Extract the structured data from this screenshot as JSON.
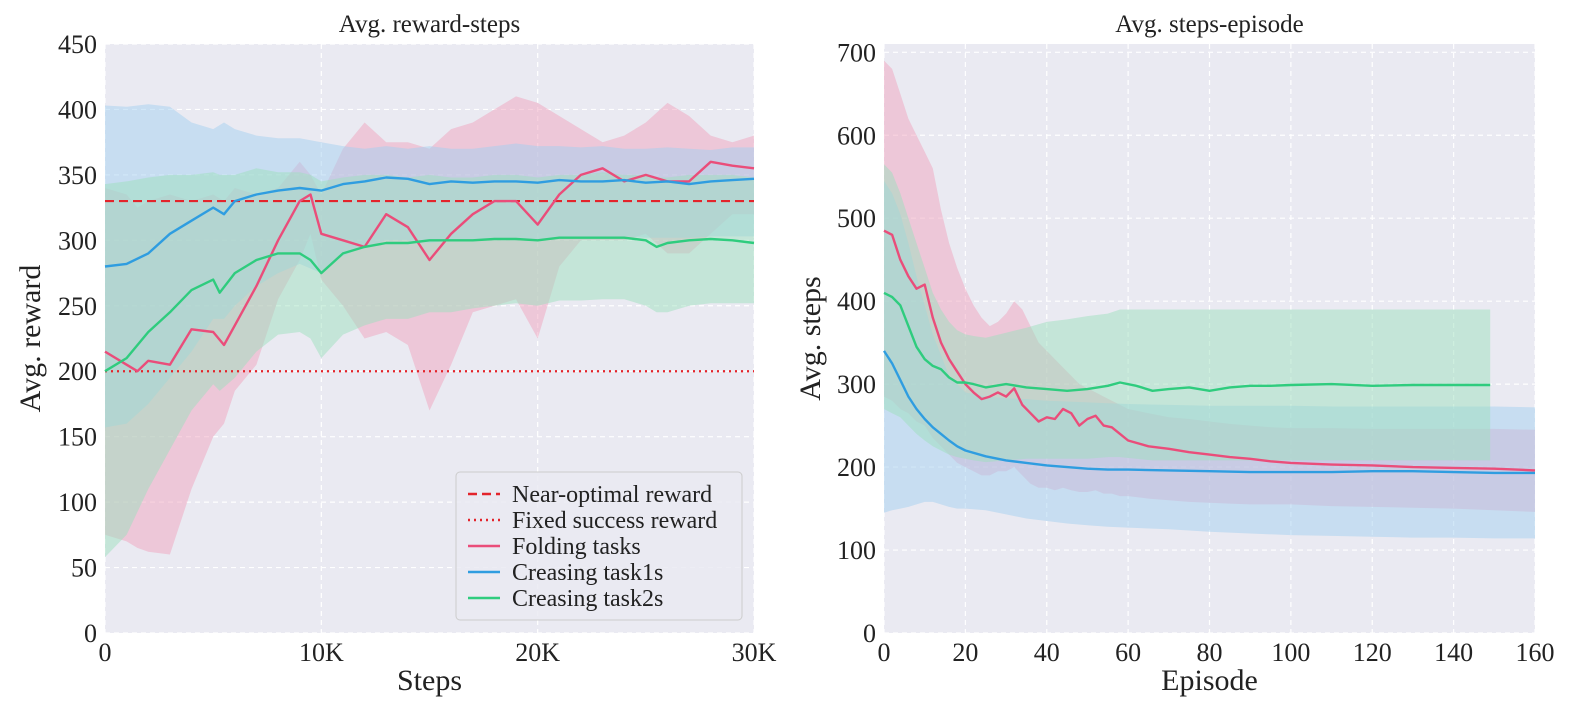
{
  "chart_data": [
    {
      "type": "line",
      "title": "Avg. reward-steps",
      "xlabel": "Steps",
      "ylabel": "Avg. reward",
      "xlim": [
        0,
        30000
      ],
      "ylim": [
        0,
        450
      ],
      "xticks": [
        0,
        10000,
        20000,
        30000
      ],
      "xtick_labels": [
        "0",
        "10K",
        "20K",
        "30K"
      ],
      "yticks": [
        0,
        50,
        100,
        150,
        200,
        250,
        300,
        350,
        400,
        450
      ],
      "ytick_labels": [
        "0",
        "50",
        "100",
        "150",
        "200",
        "250",
        "300",
        "350",
        "400",
        "450"
      ],
      "grid": true,
      "legend_position": "lower-right",
      "legend": [
        "Near-optimal reward",
        "Fixed success reward",
        "Folding tasks",
        "Creasing task1s",
        "Creasing task2s"
      ],
      "hlines": [
        {
          "name": "Near-optimal reward",
          "value": 330,
          "style": "dashed",
          "color": "#e3242b"
        },
        {
          "name": "Fixed success reward",
          "value": 200,
          "style": "dotted",
          "color": "#e3242b"
        }
      ],
      "series": [
        {
          "name": "Folding tasks",
          "color": "#ea4d7a",
          "band_color": "#f0a3bd",
          "x": [
            0,
            1000,
            1500,
            2000,
            3000,
            4000,
            5000,
            5500,
            6000,
            7000,
            8000,
            9000,
            9500,
            10000,
            11000,
            12000,
            13000,
            14000,
            15000,
            16000,
            17000,
            18000,
            19000,
            20000,
            21000,
            22000,
            23000,
            24000,
            25000,
            26000,
            27000,
            28000,
            29000,
            30000
          ],
          "values": [
            215,
            205,
            200,
            208,
            205,
            232,
            230,
            220,
            235,
            265,
            300,
            330,
            335,
            305,
            300,
            295,
            320,
            310,
            285,
            305,
            320,
            330,
            330,
            312,
            335,
            350,
            355,
            345,
            350,
            345,
            345,
            360,
            357,
            355
          ],
          "upper": [
            340,
            335,
            325,
            330,
            335,
            330,
            335,
            330,
            340,
            335,
            340,
            360,
            350,
            335,
            370,
            390,
            375,
            375,
            370,
            385,
            390,
            400,
            410,
            405,
            395,
            385,
            375,
            380,
            390,
            405,
            395,
            380,
            375,
            380
          ],
          "lower": [
            75,
            70,
            65,
            62,
            60,
            110,
            150,
            160,
            185,
            205,
            255,
            285,
            305,
            270,
            250,
            225,
            230,
            220,
            170,
            205,
            245,
            250,
            255,
            225,
            280,
            300,
            300,
            300,
            305,
            290,
            290,
            305,
            320,
            320
          ]
        },
        {
          "name": "Creasing task1s",
          "color": "#2f9de0",
          "band_color": "#a4d0ef",
          "x": [
            0,
            1000,
            2000,
            3000,
            4000,
            5000,
            5500,
            6000,
            7000,
            8000,
            9000,
            10000,
            11000,
            12000,
            13000,
            14000,
            15000,
            16000,
            17000,
            18000,
            19000,
            20000,
            21000,
            22000,
            23000,
            24000,
            25000,
            26000,
            27000,
            28000,
            29000,
            30000
          ],
          "values": [
            280,
            282,
            290,
            305,
            315,
            325,
            320,
            330,
            335,
            338,
            340,
            338,
            343,
            345,
            348,
            347,
            343,
            345,
            344,
            345,
            345,
            344,
            346,
            345,
            345,
            346,
            344,
            345,
            343,
            345,
            346,
            347
          ],
          "upper": [
            403,
            402,
            404,
            402,
            390,
            385,
            390,
            385,
            380,
            378,
            378,
            375,
            372,
            370,
            372,
            370,
            372,
            370,
            370,
            372,
            374,
            372,
            372,
            371,
            372,
            370,
            370,
            371,
            370,
            369,
            371,
            371
          ],
          "lower": [
            157,
            160,
            175,
            195,
            215,
            240,
            240,
            250,
            265,
            275,
            282,
            275,
            288,
            295,
            300,
            300,
            298,
            300,
            300,
            300,
            300,
            300,
            302,
            302,
            302,
            303,
            302,
            302,
            302,
            303,
            303,
            303
          ]
        },
        {
          "name": "Creasing task2s",
          "color": "#2fcc7e",
          "band_color": "#9ee0bd",
          "x": [
            0,
            1000,
            2000,
            3000,
            4000,
            5000,
            5300,
            6000,
            7000,
            8000,
            9000,
            9500,
            10000,
            11000,
            12000,
            13000,
            14000,
            15000,
            16000,
            17000,
            18000,
            19000,
            20000,
            21000,
            22000,
            23000,
            24000,
            25000,
            25500,
            26000,
            27000,
            28000,
            29000,
            30000
          ],
          "values": [
            200,
            210,
            230,
            245,
            262,
            270,
            260,
            275,
            285,
            290,
            290,
            285,
            275,
            290,
            295,
            298,
            298,
            300,
            300,
            300,
            301,
            301,
            300,
            302,
            302,
            302,
            302,
            300,
            295,
            298,
            300,
            301,
            300,
            298
          ],
          "upper": [
            343,
            345,
            348,
            350,
            350,
            352,
            350,
            350,
            355,
            352,
            352,
            350,
            345,
            348,
            350,
            350,
            348,
            350,
            348,
            348,
            350,
            350,
            348,
            350,
            350,
            352,
            350,
            350,
            348,
            348,
            350,
            350,
            350,
            348
          ],
          "lower": [
            58,
            75,
            110,
            140,
            170,
            190,
            185,
            195,
            215,
            228,
            230,
            225,
            210,
            228,
            235,
            240,
            240,
            245,
            245,
            248,
            250,
            252,
            250,
            254,
            254,
            255,
            255,
            250,
            245,
            245,
            250,
            252,
            252,
            252
          ]
        }
      ]
    },
    {
      "type": "line",
      "title": "Avg. steps-episode",
      "xlabel": "Episode",
      "ylabel": "Avg. steps",
      "xlim": [
        0,
        160
      ],
      "ylim": [
        0,
        710
      ],
      "xticks": [
        0,
        20,
        40,
        60,
        80,
        100,
        120,
        140,
        160
      ],
      "xtick_labels": [
        "0",
        "20",
        "40",
        "60",
        "80",
        "100",
        "120",
        "140",
        "160"
      ],
      "yticks": [
        0,
        100,
        200,
        300,
        400,
        500,
        600,
        700
      ],
      "ytick_labels": [
        "0",
        "100",
        "200",
        "300",
        "400",
        "500",
        "600",
        "700"
      ],
      "grid": true,
      "series": [
        {
          "name": "Folding tasks",
          "color": "#ea4d7a",
          "band_color": "#f0a3bd",
          "x": [
            0,
            2,
            4,
            6,
            8,
            10,
            12,
            14,
            16,
            18,
            20,
            22,
            24,
            26,
            28,
            30,
            32,
            34,
            36,
            38,
            40,
            42,
            44,
            46,
            48,
            50,
            52,
            54,
            56,
            58,
            60,
            65,
            70,
            75,
            80,
            85,
            90,
            95,
            100,
            110,
            120,
            130,
            140,
            150,
            160
          ],
          "values": [
            485,
            480,
            450,
            430,
            415,
            420,
            380,
            350,
            330,
            315,
            300,
            290,
            282,
            285,
            290,
            285,
            295,
            275,
            265,
            255,
            260,
            258,
            270,
            265,
            250,
            258,
            262,
            250,
            248,
            240,
            232,
            225,
            222,
            218,
            215,
            212,
            210,
            207,
            205,
            203,
            202,
            200,
            199,
            198,
            196
          ],
          "upper": [
            690,
            680,
            650,
            620,
            600,
            580,
            560,
            510,
            470,
            440,
            415,
            395,
            380,
            370,
            375,
            385,
            400,
            390,
            370,
            350,
            340,
            330,
            320,
            310,
            300,
            295,
            290,
            285,
            280,
            275,
            270,
            265,
            260,
            258,
            255,
            252,
            250,
            248,
            247,
            247,
            246,
            246,
            246,
            246,
            245
          ],
          "lower": [
            285,
            280,
            270,
            265,
            255,
            250,
            235,
            225,
            215,
            205,
            200,
            195,
            190,
            190,
            195,
            195,
            200,
            190,
            180,
            175,
            175,
            172,
            175,
            172,
            170,
            170,
            172,
            168,
            168,
            165,
            165,
            162,
            160,
            158,
            157,
            156,
            155,
            155,
            155,
            153,
            152,
            151,
            150,
            148,
            146
          ]
        },
        {
          "name": "Creasing task1s",
          "color": "#2f9de0",
          "band_color": "#a4d0ef",
          "x": [
            0,
            2,
            4,
            6,
            8,
            10,
            12,
            14,
            16,
            18,
            20,
            25,
            30,
            35,
            40,
            45,
            50,
            55,
            60,
            70,
            80,
            90,
            100,
            110,
            120,
            130,
            140,
            150,
            160
          ],
          "values": [
            340,
            325,
            305,
            285,
            270,
            258,
            248,
            240,
            232,
            225,
            220,
            213,
            208,
            205,
            202,
            200,
            198,
            197,
            197,
            196,
            195,
            194,
            194,
            194,
            195,
            195,
            194,
            193,
            193
          ],
          "upper": [
            545,
            530,
            505,
            470,
            430,
            395,
            360,
            335,
            310,
            300,
            290,
            285,
            283,
            282,
            280,
            279,
            278,
            277,
            276,
            275,
            274,
            274,
            274,
            273,
            273,
            273,
            273,
            273,
            272
          ],
          "lower": [
            145,
            148,
            150,
            152,
            155,
            158,
            158,
            155,
            152,
            150,
            150,
            148,
            143,
            138,
            135,
            132,
            130,
            128,
            127,
            125,
            122,
            120,
            118,
            117,
            116,
            115,
            115,
            114,
            114
          ]
        },
        {
          "name": "Creasing task2s",
          "color": "#2fcc7e",
          "band_color": "#9ee0bd",
          "x": [
            0,
            2,
            4,
            6,
            8,
            10,
            12,
            14,
            16,
            18,
            20,
            22,
            25,
            30,
            35,
            40,
            45,
            50,
            55,
            58,
            62,
            66,
            70,
            75,
            80,
            85,
            90,
            95,
            100,
            110,
            120,
            130,
            140,
            149
          ],
          "values": [
            410,
            405,
            395,
            370,
            345,
            330,
            322,
            318,
            308,
            302,
            302,
            300,
            296,
            300,
            296,
            294,
            292,
            294,
            298,
            302,
            298,
            292,
            294,
            296,
            292,
            296,
            298,
            298,
            299,
            300,
            298,
            299,
            299,
            299
          ],
          "upper": [
            565,
            555,
            530,
            500,
            470,
            440,
            410,
            390,
            375,
            365,
            360,
            358,
            356,
            362,
            368,
            375,
            378,
            382,
            385,
            390,
            390,
            390,
            390,
            390,
            390,
            390,
            390,
            390,
            390,
            390,
            390,
            390,
            390,
            390
          ],
          "lower": [
            270,
            265,
            260,
            250,
            240,
            232,
            225,
            220,
            215,
            212,
            210,
            208,
            206,
            208,
            210,
            210,
            210,
            210,
            212,
            212,
            210,
            208,
            208,
            208,
            208,
            208,
            208,
            208,
            208,
            208,
            208,
            208,
            208,
            208
          ]
        }
      ]
    }
  ]
}
